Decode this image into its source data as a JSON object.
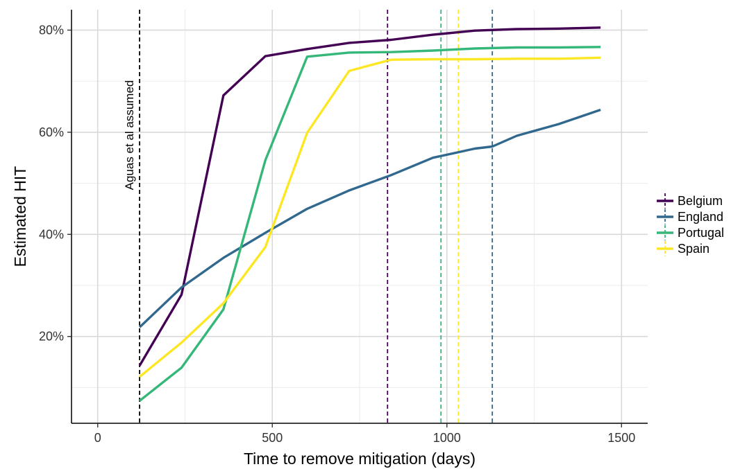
{
  "chart_data": {
    "type": "line",
    "xlabel": "Time to remove mitigation (days)",
    "ylabel": "Estimated HIT",
    "xlim": [
      -75,
      1575
    ],
    "ylim": [
      3,
      84
    ],
    "x_ticks": [
      0,
      500,
      1000,
      1500
    ],
    "x_tick_labels": [
      "0",
      "500",
      "1000",
      "1500"
    ],
    "y_ticks": [
      20,
      40,
      60,
      80
    ],
    "y_tick_labels": [
      "20%",
      "40%",
      "60%",
      "80%"
    ],
    "grid": true,
    "legend_position": "right",
    "series": [
      {
        "name": "Belgium",
        "color": "#440154",
        "x": [
          120,
          240,
          360,
          480,
          600,
          720,
          840,
          960,
          1080,
          1200,
          1320,
          1440
        ],
        "y": [
          14.3,
          28.2,
          67.2,
          74.9,
          76.3,
          77.5,
          78.1,
          79.1,
          79.9,
          80.2,
          80.3,
          80.5
        ],
        "vline": 830
      },
      {
        "name": "England",
        "color": "#31688e",
        "x": [
          120,
          240,
          360,
          480,
          600,
          720,
          840,
          960,
          1080,
          1130,
          1200,
          1320,
          1440
        ],
        "y": [
          21.8,
          29.6,
          35.4,
          40.3,
          45.0,
          48.6,
          51.6,
          55.0,
          56.8,
          57.2,
          59.3,
          61.6,
          64.4
        ],
        "vline": 1130
      },
      {
        "name": "Portugal",
        "color": "#35b779",
        "x": [
          120,
          240,
          360,
          480,
          600,
          720,
          840,
          960,
          1080,
          1200,
          1320,
          1440
        ],
        "y": [
          7.4,
          13.9,
          25.3,
          54.5,
          74.8,
          75.6,
          75.7,
          76.0,
          76.4,
          76.6,
          76.6,
          76.7
        ],
        "vline": 983
      },
      {
        "name": "Spain",
        "color": "#fde725",
        "x": [
          120,
          240,
          360,
          480,
          600,
          720,
          840,
          960,
          1080,
          1200,
          1320,
          1440
        ],
        "y": [
          12.1,
          18.8,
          26.5,
          37.5,
          59.9,
          72.0,
          74.2,
          74.3,
          74.3,
          74.4,
          74.4,
          74.6
        ],
        "vline": 1033
      }
    ],
    "annotation": {
      "text": "Aguas et al assumed",
      "x": 120,
      "color": "#000000"
    }
  }
}
